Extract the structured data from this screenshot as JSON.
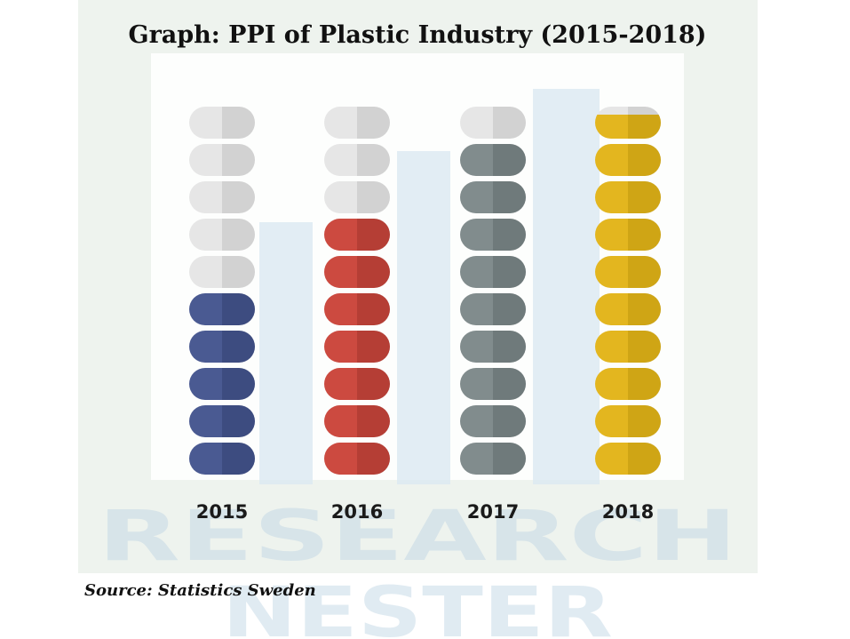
{
  "chart_data": {
    "type": "bar",
    "title": "Graph: PPI of Plastic Industry (2015-2018)",
    "categories": [
      "2015",
      "2016",
      "2017",
      "2018"
    ],
    "values": [
      5,
      7,
      9,
      9.75
    ],
    "units_total": 10,
    "source": "Source: Statistics Sweden",
    "watermark": [
      "RESEARCH",
      "NESTER"
    ],
    "colors": {
      "2015": [
        "#4a5a92",
        "#3d4c80"
      ],
      "2016": [
        "#cc4a40",
        "#b53e35"
      ],
      "2017": [
        "#818c8d",
        "#6f7a7b"
      ],
      "2018": [
        "#e3b61f",
        "#cfa515"
      ],
      "empty": [
        "#e6e6e6",
        "#d2d2d2"
      ]
    }
  }
}
